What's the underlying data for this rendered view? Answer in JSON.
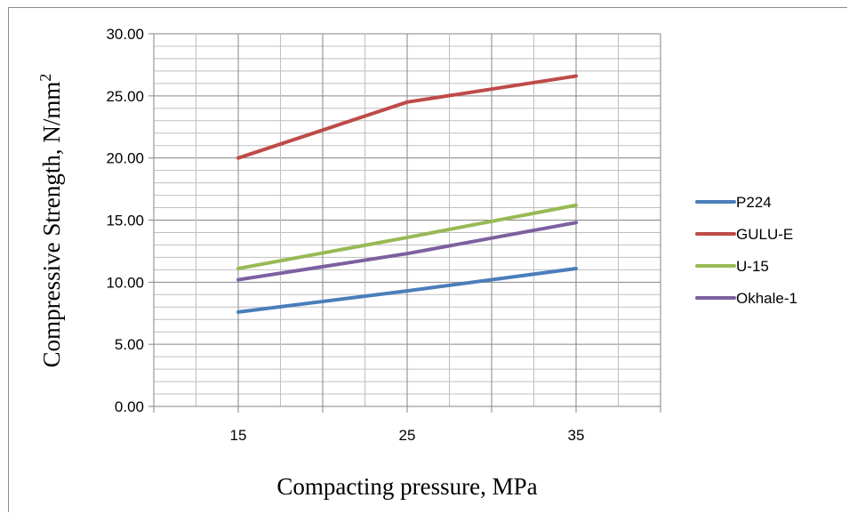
{
  "chart_data": {
    "type": "line",
    "title": "",
    "xlabel": "Compacting pressure, MPa",
    "ylabel": "Compressive Strength, N/mm",
    "ylabel_superscript": "2",
    "categories": [
      "15",
      "25",
      "35"
    ],
    "x": [
      15,
      25,
      35
    ],
    "xlim": [
      10,
      40
    ],
    "ylim": [
      0,
      30
    ],
    "yticks": [
      "0.00",
      "5.00",
      "10.00",
      "15.00",
      "20.00",
      "25.00",
      "30.00"
    ],
    "grid": true,
    "legend_position": "right",
    "series": [
      {
        "name": "P224",
        "color": "#4a7ebb",
        "values": [
          7.6,
          9.3,
          11.1
        ]
      },
      {
        "name": "GULU-E",
        "color": "#be4b48",
        "values": [
          20.0,
          24.5,
          26.6
        ]
      },
      {
        "name": "U-15",
        "color": "#98b954",
        "values": [
          11.1,
          13.6,
          16.2
        ]
      },
      {
        "name": "Okhale-1",
        "color": "#7d60a0",
        "values": [
          10.2,
          12.3,
          14.8
        ]
      }
    ]
  }
}
